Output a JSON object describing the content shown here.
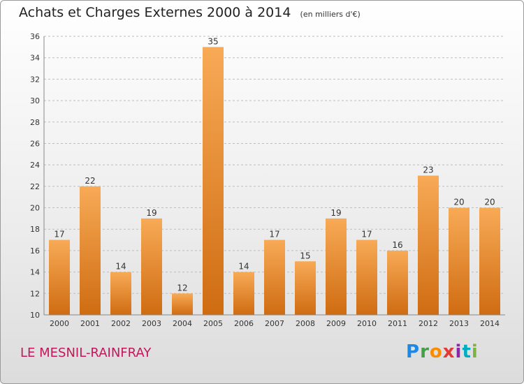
{
  "title": "Achats et Charges Externes 2000 à 2014",
  "unit": "(en milliers d'€)",
  "place": "LE MESNIL-RAINFRAY",
  "logo": {
    "letters": [
      "P",
      "r",
      "o",
      "x",
      "i",
      "t",
      "i"
    ],
    "colors": [
      "#1e88e5",
      "#43a047",
      "#fb8c00",
      "#e53935",
      "#8e24aa",
      "#00acc1",
      "#7cb342"
    ]
  },
  "colors": {
    "bar_light": "#f8aa56",
    "bar_dark": "#cf6c12",
    "grid": "#bdbdbd"
  },
  "chart_data": {
    "type": "bar",
    "categories": [
      "2000",
      "2001",
      "2002",
      "2003",
      "2004",
      "2005",
      "2006",
      "2007",
      "2008",
      "2009",
      "2010",
      "2011",
      "2012",
      "2013",
      "2014"
    ],
    "values": [
      17,
      22,
      14,
      19,
      12,
      35,
      14,
      17,
      15,
      19,
      17,
      16,
      23,
      20,
      20
    ],
    "ylim": [
      10,
      36
    ],
    "yticks": [
      10,
      12,
      14,
      16,
      18,
      20,
      22,
      24,
      26,
      28,
      30,
      32,
      34,
      36
    ],
    "grid": true
  }
}
